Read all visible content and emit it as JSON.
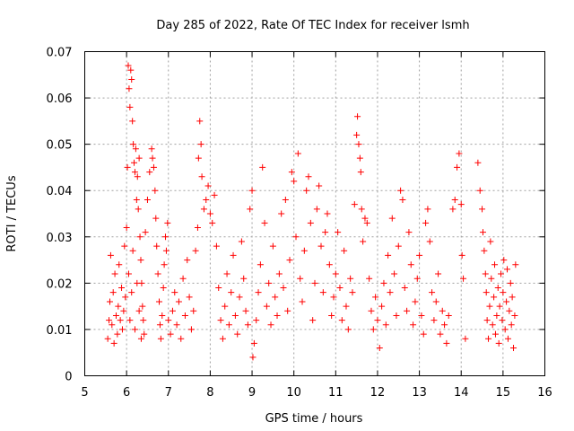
{
  "chart_data": {
    "type": "scatter",
    "title": "Day 285 of 2022, Rate Of TEC Index for receiver lsmh",
    "xlabel": "GPS time / hours",
    "ylabel": "ROTI / TECUs",
    "xlim": [
      5,
      16
    ],
    "ylim": [
      0,
      0.07
    ],
    "x_ticks": [
      "5",
      "6",
      "7",
      "8",
      "9",
      "10",
      "11",
      "12",
      "13",
      "14",
      "15",
      "16"
    ],
    "y_ticks": [
      "0",
      "0.01",
      "0.02",
      "0.03",
      "0.04",
      "0.05",
      "0.06",
      "0.07"
    ],
    "grid": true,
    "marker": "+",
    "color": "#ff0000",
    "series": [
      {
        "points": [
          [
            5.55,
            0.008
          ],
          [
            5.58,
            0.012
          ],
          [
            5.6,
            0.016
          ],
          [
            5.62,
            0.026
          ],
          [
            5.65,
            0.011
          ],
          [
            5.68,
            0.018
          ],
          [
            5.7,
            0.007
          ],
          [
            5.72,
            0.022
          ],
          [
            5.75,
            0.013
          ],
          [
            5.78,
            0.009
          ],
          [
            5.8,
            0.015
          ],
          [
            5.82,
            0.024
          ],
          [
            5.85,
            0.012
          ],
          [
            5.88,
            0.019
          ],
          [
            5.9,
            0.01
          ],
          [
            5.93,
            0.014
          ],
          [
            5.95,
            0.028
          ],
          [
            5.97,
            0.017
          ],
          [
            6.0,
            0.032
          ],
          [
            6.02,
            0.045
          ],
          [
            6.04,
            0.067
          ],
          [
            6.06,
            0.062
          ],
          [
            6.08,
            0.058
          ],
          [
            6.1,
            0.066
          ],
          [
            6.12,
            0.064
          ],
          [
            6.14,
            0.055
          ],
          [
            6.16,
            0.05
          ],
          [
            6.18,
            0.046
          ],
          [
            6.2,
            0.044
          ],
          [
            6.22,
            0.049
          ],
          [
            6.24,
            0.038
          ],
          [
            6.26,
            0.043
          ],
          [
            6.28,
            0.036
          ],
          [
            6.3,
            0.047
          ],
          [
            6.32,
            0.03
          ],
          [
            6.34,
            0.025
          ],
          [
            6.36,
            0.02
          ],
          [
            6.38,
            0.015
          ],
          [
            6.4,
            0.012
          ],
          [
            6.42,
            0.009
          ],
          [
            6.05,
            0.022
          ],
          [
            6.08,
            0.012
          ],
          [
            6.12,
            0.018
          ],
          [
            6.15,
            0.027
          ],
          [
            6.2,
            0.01
          ],
          [
            6.25,
            0.02
          ],
          [
            6.3,
            0.014
          ],
          [
            6.35,
            0.008
          ],
          [
            6.45,
            0.031
          ],
          [
            6.5,
            0.038
          ],
          [
            6.55,
            0.044
          ],
          [
            6.6,
            0.049
          ],
          [
            6.62,
            0.047
          ],
          [
            6.65,
            0.045
          ],
          [
            6.68,
            0.04
          ],
          [
            6.7,
            0.034
          ],
          [
            6.72,
            0.028
          ],
          [
            6.75,
            0.022
          ],
          [
            6.78,
            0.016
          ],
          [
            6.8,
            0.011
          ],
          [
            6.82,
            0.008
          ],
          [
            6.85,
            0.013
          ],
          [
            6.88,
            0.019
          ],
          [
            6.9,
            0.024
          ],
          [
            6.93,
            0.03
          ],
          [
            6.95,
            0.027
          ],
          [
            6.98,
            0.033
          ],
          [
            7.0,
            0.012
          ],
          [
            7.05,
            0.009
          ],
          [
            7.1,
            0.014
          ],
          [
            7.15,
            0.018
          ],
          [
            7.2,
            0.011
          ],
          [
            7.25,
            0.016
          ],
          [
            7.3,
            0.008
          ],
          [
            7.35,
            0.021
          ],
          [
            7.4,
            0.013
          ],
          [
            7.45,
            0.025
          ],
          [
            7.5,
            0.017
          ],
          [
            7.55,
            0.01
          ],
          [
            7.6,
            0.014
          ],
          [
            7.65,
            0.027
          ],
          [
            7.7,
            0.032
          ],
          [
            7.72,
            0.047
          ],
          [
            7.75,
            0.055
          ],
          [
            7.78,
            0.05
          ],
          [
            7.8,
            0.043
          ],
          [
            7.85,
            0.036
          ],
          [
            7.9,
            0.038
          ],
          [
            7.95,
            0.041
          ],
          [
            8.0,
            0.035
          ],
          [
            8.05,
            0.033
          ],
          [
            8.1,
            0.039
          ],
          [
            8.15,
            0.028
          ],
          [
            8.2,
            0.019
          ],
          [
            8.25,
            0.012
          ],
          [
            8.3,
            0.008
          ],
          [
            8.35,
            0.015
          ],
          [
            8.4,
            0.022
          ],
          [
            8.45,
            0.011
          ],
          [
            8.5,
            0.018
          ],
          [
            8.55,
            0.026
          ],
          [
            8.6,
            0.013
          ],
          [
            8.65,
            0.009
          ],
          [
            8.7,
            0.017
          ],
          [
            8.75,
            0.029
          ],
          [
            8.8,
            0.021
          ],
          [
            8.85,
            0.014
          ],
          [
            8.9,
            0.011
          ],
          [
            8.95,
            0.036
          ],
          [
            9.0,
            0.04
          ],
          [
            9.02,
            0.004
          ],
          [
            9.05,
            0.007
          ],
          [
            9.1,
            0.012
          ],
          [
            9.15,
            0.018
          ],
          [
            9.2,
            0.024
          ],
          [
            9.25,
            0.045
          ],
          [
            9.3,
            0.033
          ],
          [
            9.35,
            0.015
          ],
          [
            9.4,
            0.02
          ],
          [
            9.45,
            0.011
          ],
          [
            9.5,
            0.028
          ],
          [
            9.55,
            0.017
          ],
          [
            9.6,
            0.013
          ],
          [
            9.65,
            0.022
          ],
          [
            9.7,
            0.035
          ],
          [
            9.75,
            0.019
          ],
          [
            9.8,
            0.038
          ],
          [
            9.85,
            0.014
          ],
          [
            9.9,
            0.025
          ],
          [
            9.95,
            0.044
          ],
          [
            10.0,
            0.042
          ],
          [
            10.05,
            0.03
          ],
          [
            10.1,
            0.048
          ],
          [
            10.15,
            0.021
          ],
          [
            10.2,
            0.016
          ],
          [
            10.25,
            0.027
          ],
          [
            10.3,
            0.04
          ],
          [
            10.35,
            0.043
          ],
          [
            10.4,
            0.033
          ],
          [
            10.45,
            0.012
          ],
          [
            10.5,
            0.02
          ],
          [
            10.55,
            0.036
          ],
          [
            10.6,
            0.041
          ],
          [
            10.65,
            0.028
          ],
          [
            10.7,
            0.018
          ],
          [
            10.75,
            0.031
          ],
          [
            10.8,
            0.035
          ],
          [
            10.85,
            0.024
          ],
          [
            10.9,
            0.013
          ],
          [
            10.95,
            0.017
          ],
          [
            11.0,
            0.022
          ],
          [
            11.05,
            0.031
          ],
          [
            11.1,
            0.019
          ],
          [
            11.15,
            0.012
          ],
          [
            11.2,
            0.027
          ],
          [
            11.25,
            0.015
          ],
          [
            11.3,
            0.01
          ],
          [
            11.35,
            0.021
          ],
          [
            11.4,
            0.018
          ],
          [
            11.45,
            0.037
          ],
          [
            11.5,
            0.052
          ],
          [
            11.52,
            0.056
          ],
          [
            11.55,
            0.05
          ],
          [
            11.58,
            0.047
          ],
          [
            11.6,
            0.044
          ],
          [
            11.62,
            0.036
          ],
          [
            11.65,
            0.029
          ],
          [
            11.7,
            0.034
          ],
          [
            11.75,
            0.033
          ],
          [
            11.8,
            0.021
          ],
          [
            11.85,
            0.014
          ],
          [
            11.9,
            0.01
          ],
          [
            11.95,
            0.017
          ],
          [
            12.0,
            0.012
          ],
          [
            12.05,
            0.006
          ],
          [
            12.1,
            0.015
          ],
          [
            12.15,
            0.02
          ],
          [
            12.2,
            0.011
          ],
          [
            12.25,
            0.026
          ],
          [
            12.3,
            0.018
          ],
          [
            12.35,
            0.034
          ],
          [
            12.4,
            0.022
          ],
          [
            12.45,
            0.013
          ],
          [
            12.5,
            0.028
          ],
          [
            12.55,
            0.04
          ],
          [
            12.6,
            0.038
          ],
          [
            12.65,
            0.019
          ],
          [
            12.7,
            0.014
          ],
          [
            12.75,
            0.031
          ],
          [
            12.8,
            0.024
          ],
          [
            12.85,
            0.011
          ],
          [
            12.9,
            0.016
          ],
          [
            12.95,
            0.021
          ],
          [
            13.0,
            0.026
          ],
          [
            13.05,
            0.013
          ],
          [
            13.1,
            0.009
          ],
          [
            13.15,
            0.033
          ],
          [
            13.2,
            0.036
          ],
          [
            13.25,
            0.029
          ],
          [
            13.3,
            0.018
          ],
          [
            13.35,
            0.012
          ],
          [
            13.4,
            0.016
          ],
          [
            13.45,
            0.022
          ],
          [
            13.5,
            0.009
          ],
          [
            13.55,
            0.014
          ],
          [
            13.6,
            0.011
          ],
          [
            13.65,
            0.007
          ],
          [
            13.7,
            0.013
          ],
          [
            13.8,
            0.036
          ],
          [
            13.85,
            0.038
          ],
          [
            13.9,
            0.045
          ],
          [
            13.95,
            0.048
          ],
          [
            14.0,
            0.037
          ],
          [
            14.02,
            0.026
          ],
          [
            14.05,
            0.021
          ],
          [
            14.1,
            0.008
          ],
          [
            14.4,
            0.046
          ],
          [
            14.45,
            0.04
          ],
          [
            14.5,
            0.036
          ],
          [
            14.52,
            0.031
          ],
          [
            14.55,
            0.027
          ],
          [
            14.58,
            0.022
          ],
          [
            14.6,
            0.018
          ],
          [
            14.62,
            0.012
          ],
          [
            14.65,
            0.008
          ],
          [
            14.68,
            0.015
          ],
          [
            14.7,
            0.029
          ],
          [
            14.72,
            0.021
          ],
          [
            14.75,
            0.011
          ],
          [
            14.78,
            0.017
          ],
          [
            14.8,
            0.024
          ],
          [
            14.82,
            0.009
          ],
          [
            14.85,
            0.013
          ],
          [
            14.88,
            0.019
          ],
          [
            14.9,
            0.007
          ],
          [
            14.92,
            0.015
          ],
          [
            14.95,
            0.022
          ],
          [
            14.98,
            0.012
          ],
          [
            15.0,
            0.018
          ],
          [
            15.02,
            0.025
          ],
          [
            15.05,
            0.01
          ],
          [
            15.08,
            0.016
          ],
          [
            15.1,
            0.023
          ],
          [
            15.12,
            0.008
          ],
          [
            15.15,
            0.014
          ],
          [
            15.18,
            0.02
          ],
          [
            15.2,
            0.011
          ],
          [
            15.22,
            0.017
          ],
          [
            15.25,
            0.006
          ],
          [
            15.28,
            0.013
          ],
          [
            15.3,
            0.024
          ]
        ]
      }
    ]
  }
}
